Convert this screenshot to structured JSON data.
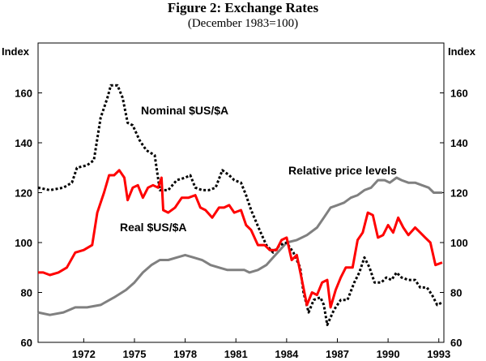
{
  "chart_data": {
    "type": "line",
    "title": "Figure 2: Exchange Rates",
    "subtitle": "(December 1983=100)",
    "ylabel_left": "Index",
    "ylabel_right": "Index",
    "ylim": [
      60,
      180
    ],
    "yticks": [
      60,
      80,
      100,
      120,
      140,
      160
    ],
    "xlim": [
      1969.3,
      1993.3
    ],
    "xticks": [
      1972,
      1975,
      1978,
      1981,
      1984,
      1987,
      1990,
      1993
    ],
    "annotations": [
      {
        "text": "Nominal $US/$A",
        "series": "nominal"
      },
      {
        "text": "Real $US/$A",
        "series": "real"
      },
      {
        "text": "Relative price levels",
        "series": "relative"
      }
    ],
    "series": [
      {
        "name": "Nominal $US/$A",
        "key": "nominal",
        "color": "#000000",
        "style": "dotted",
        "points": [
          [
            1969.3,
            122
          ],
          [
            1970.0,
            121
          ],
          [
            1970.8,
            122
          ],
          [
            1971.3,
            124
          ],
          [
            1971.6,
            130
          ],
          [
            1972.2,
            131
          ],
          [
            1972.6,
            133
          ],
          [
            1973.0,
            150
          ],
          [
            1973.4,
            158
          ],
          [
            1973.6,
            163
          ],
          [
            1974.0,
            163
          ],
          [
            1974.3,
            158
          ],
          [
            1974.6,
            148
          ],
          [
            1974.9,
            147
          ],
          [
            1975.3,
            141
          ],
          [
            1975.7,
            137
          ],
          [
            1976.2,
            135
          ],
          [
            1976.5,
            121
          ],
          [
            1977.0,
            121
          ],
          [
            1977.5,
            125
          ],
          [
            1978.0,
            126
          ],
          [
            1978.3,
            127
          ],
          [
            1978.6,
            122
          ],
          [
            1979.0,
            121
          ],
          [
            1979.4,
            121
          ],
          [
            1979.8,
            122
          ],
          [
            1980.2,
            129
          ],
          [
            1980.6,
            127
          ],
          [
            1980.9,
            125
          ],
          [
            1981.3,
            124
          ],
          [
            1981.6,
            119
          ],
          [
            1981.9,
            113
          ],
          [
            1982.4,
            105
          ],
          [
            1982.8,
            99
          ],
          [
            1983.2,
            96
          ],
          [
            1983.6,
            99
          ],
          [
            1984.0,
            100
          ],
          [
            1984.4,
            96
          ],
          [
            1984.8,
            90
          ],
          [
            1985.0,
            80
          ],
          [
            1985.3,
            72
          ],
          [
            1985.6,
            77
          ],
          [
            1986.0,
            78
          ],
          [
            1986.2,
            75
          ],
          [
            1986.4,
            67
          ],
          [
            1986.8,
            73
          ],
          [
            1987.2,
            77
          ],
          [
            1987.6,
            77
          ],
          [
            1988.0,
            84
          ],
          [
            1988.3,
            88
          ],
          [
            1988.6,
            94
          ],
          [
            1988.9,
            90
          ],
          [
            1989.2,
            84
          ],
          [
            1989.6,
            84
          ],
          [
            1989.9,
            86
          ],
          [
            1990.2,
            85
          ],
          [
            1990.5,
            88
          ],
          [
            1990.8,
            86
          ],
          [
            1991.2,
            85
          ],
          [
            1991.6,
            85
          ],
          [
            1991.9,
            82
          ],
          [
            1992.3,
            82
          ],
          [
            1992.6,
            79
          ],
          [
            1992.9,
            75
          ],
          [
            1993.2,
            76
          ]
        ]
      },
      {
        "name": "Real $US/$A",
        "key": "real",
        "color": "#ff0000",
        "style": "solid",
        "points": [
          [
            1969.3,
            88
          ],
          [
            1969.6,
            88
          ],
          [
            1970.0,
            87
          ],
          [
            1970.5,
            88
          ],
          [
            1971.0,
            90
          ],
          [
            1971.5,
            96
          ],
          [
            1972.0,
            97
          ],
          [
            1972.5,
            99
          ],
          [
            1972.8,
            112
          ],
          [
            1973.2,
            120
          ],
          [
            1973.5,
            127
          ],
          [
            1973.8,
            127
          ],
          [
            1974.1,
            129
          ],
          [
            1974.4,
            126
          ],
          [
            1974.6,
            117
          ],
          [
            1974.9,
            122
          ],
          [
            1975.2,
            123
          ],
          [
            1975.5,
            118
          ],
          [
            1975.8,
            122
          ],
          [
            1976.1,
            123
          ],
          [
            1976.4,
            122
          ],
          [
            1976.6,
            126
          ],
          [
            1976.7,
            113
          ],
          [
            1977.0,
            112
          ],
          [
            1977.4,
            114
          ],
          [
            1977.8,
            118
          ],
          [
            1978.2,
            118
          ],
          [
            1978.6,
            119
          ],
          [
            1978.9,
            114
          ],
          [
            1979.2,
            113
          ],
          [
            1979.6,
            110
          ],
          [
            1980.0,
            114
          ],
          [
            1980.3,
            114
          ],
          [
            1980.6,
            115
          ],
          [
            1980.9,
            112
          ],
          [
            1981.3,
            113
          ],
          [
            1981.6,
            107
          ],
          [
            1981.9,
            105
          ],
          [
            1982.3,
            99
          ],
          [
            1982.7,
            99
          ],
          [
            1983.0,
            97
          ],
          [
            1983.4,
            97
          ],
          [
            1983.7,
            101
          ],
          [
            1984.0,
            102
          ],
          [
            1984.3,
            93
          ],
          [
            1984.6,
            95
          ],
          [
            1984.9,
            85
          ],
          [
            1985.2,
            75
          ],
          [
            1985.5,
            80
          ],
          [
            1985.8,
            79
          ],
          [
            1986.1,
            84
          ],
          [
            1986.4,
            85
          ],
          [
            1986.6,
            74
          ],
          [
            1986.9,
            81
          ],
          [
            1987.2,
            86
          ],
          [
            1987.5,
            90
          ],
          [
            1987.9,
            90
          ],
          [
            1988.2,
            101
          ],
          [
            1988.5,
            104
          ],
          [
            1988.8,
            112
          ],
          [
            1989.1,
            111
          ],
          [
            1989.4,
            102
          ],
          [
            1989.7,
            103
          ],
          [
            1990.0,
            107
          ],
          [
            1990.3,
            104
          ],
          [
            1990.6,
            110
          ],
          [
            1990.9,
            106
          ],
          [
            1991.2,
            103
          ],
          [
            1991.6,
            106
          ],
          [
            1991.9,
            104
          ],
          [
            1992.2,
            102
          ],
          [
            1992.5,
            100
          ],
          [
            1992.8,
            91
          ],
          [
            1993.2,
            92
          ]
        ]
      },
      {
        "name": "Relative price levels",
        "key": "relative",
        "color": "#808080",
        "style": "solid",
        "points": [
          [
            1969.3,
            72
          ],
          [
            1970.0,
            71
          ],
          [
            1970.8,
            72
          ],
          [
            1971.5,
            74
          ],
          [
            1972.2,
            74
          ],
          [
            1973.0,
            75
          ],
          [
            1973.8,
            78
          ],
          [
            1974.5,
            81
          ],
          [
            1975.0,
            84
          ],
          [
            1975.5,
            88
          ],
          [
            1976.0,
            91
          ],
          [
            1976.5,
            93
          ],
          [
            1977.0,
            93
          ],
          [
            1977.5,
            94
          ],
          [
            1978.0,
            95
          ],
          [
            1978.5,
            94
          ],
          [
            1979.0,
            93
          ],
          [
            1979.5,
            91
          ],
          [
            1980.0,
            90
          ],
          [
            1980.5,
            89
          ],
          [
            1981.0,
            89
          ],
          [
            1981.5,
            89
          ],
          [
            1981.8,
            88
          ],
          [
            1982.3,
            89
          ],
          [
            1982.8,
            91
          ],
          [
            1983.2,
            94
          ],
          [
            1983.6,
            97
          ],
          [
            1984.0,
            100
          ],
          [
            1984.6,
            101
          ],
          [
            1985.2,
            103
          ],
          [
            1985.8,
            106
          ],
          [
            1986.2,
            110
          ],
          [
            1986.6,
            114
          ],
          [
            1987.0,
            115
          ],
          [
            1987.4,
            116
          ],
          [
            1987.8,
            118
          ],
          [
            1988.2,
            119
          ],
          [
            1988.6,
            121
          ],
          [
            1989.0,
            122
          ],
          [
            1989.4,
            125
          ],
          [
            1989.8,
            125
          ],
          [
            1990.1,
            124
          ],
          [
            1990.5,
            126
          ],
          [
            1990.8,
            125
          ],
          [
            1991.2,
            124
          ],
          [
            1991.6,
            124
          ],
          [
            1992.0,
            123
          ],
          [
            1992.4,
            122
          ],
          [
            1992.7,
            120
          ],
          [
            1993.2,
            120
          ]
        ]
      }
    ]
  }
}
